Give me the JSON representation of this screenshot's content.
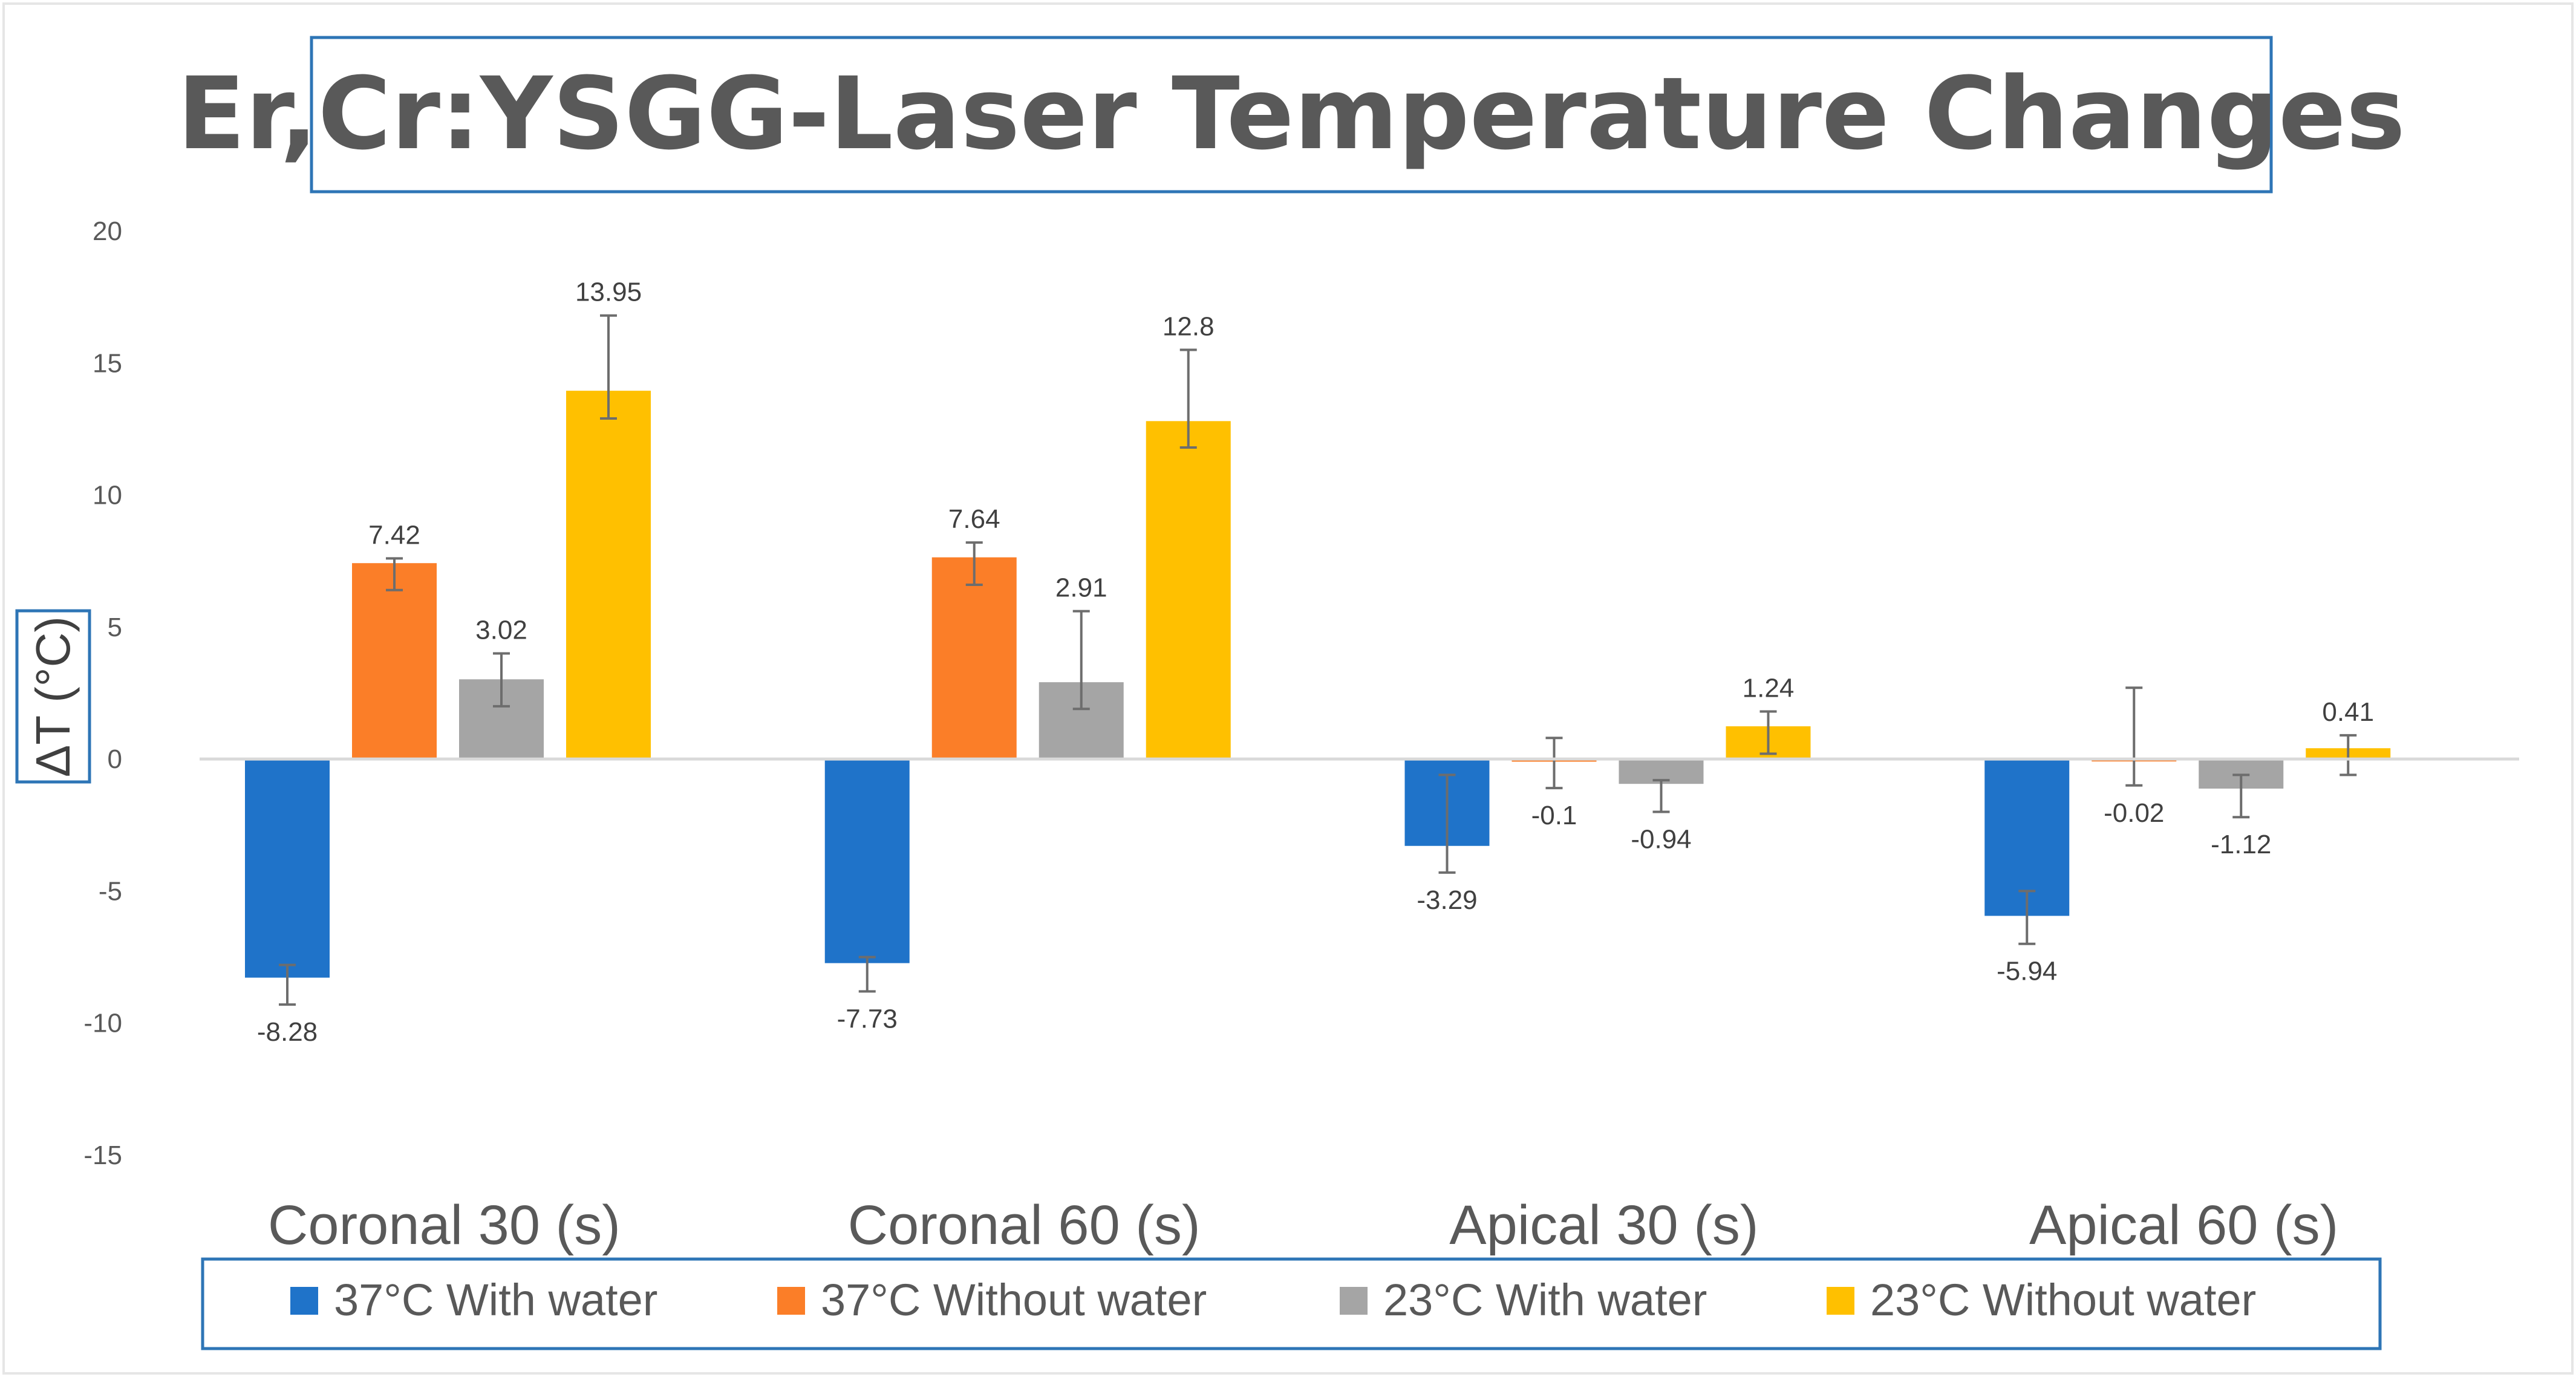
{
  "chart_data": {
    "type": "bar",
    "title": "Er,Cr:YSGG-Laser Temperature Changes",
    "xlabel": "",
    "ylabel": "ΔT (°C)",
    "ylim": [
      -15,
      20
    ],
    "yticks": [
      20,
      15,
      10,
      5,
      0,
      -5,
      -10,
      -15
    ],
    "grid": false,
    "legend_position": "bottom",
    "categories": [
      "Coronal 30 (s)",
      "Coronal 60 (s)",
      "Apical 30 (s)",
      "Apical 60 (s)"
    ],
    "series": [
      {
        "name": "37°C With water",
        "color": "#1f73c9",
        "values": [
          -8.28,
          -7.73,
          -3.29,
          -5.94
        ],
        "labels": [
          "-8.28",
          "-7.73",
          "-3.29",
          "-5.94"
        ],
        "error_low": [
          -9.3,
          -8.8,
          -4.3,
          -7.0
        ],
        "error_high": [
          -7.8,
          -7.5,
          -0.6,
          -5.0
        ]
      },
      {
        "name": "37°C Without water",
        "color": "#fb7e28",
        "values": [
          7.42,
          7.64,
          -0.1,
          -0.02
        ],
        "labels": [
          "7.42",
          "7.64",
          "-0.1",
          "-0.02"
        ],
        "error_low": [
          6.4,
          6.6,
          -1.1,
          -1.0
        ],
        "error_high": [
          7.6,
          8.2,
          0.8,
          2.7
        ]
      },
      {
        "name": "23°C With water",
        "color": "#a5a5a5",
        "values": [
          3.02,
          2.91,
          -0.94,
          -1.12
        ],
        "labels": [
          "3.02",
          "2.91",
          "-0.94",
          "-1.12"
        ],
        "error_low": [
          2.0,
          1.9,
          -2.0,
          -2.2
        ],
        "error_high": [
          4.0,
          5.6,
          -0.8,
          -0.6
        ]
      },
      {
        "name": "23°C Without water",
        "color": "#ffc000",
        "values": [
          13.95,
          12.8,
          1.24,
          0.41
        ],
        "labels": [
          "13.95",
          "12.8",
          "1.24",
          "0.41"
        ],
        "error_low": [
          12.9,
          11.8,
          0.2,
          -0.6
        ],
        "error_high": [
          16.8,
          15.5,
          1.8,
          0.9
        ]
      }
    ]
  }
}
